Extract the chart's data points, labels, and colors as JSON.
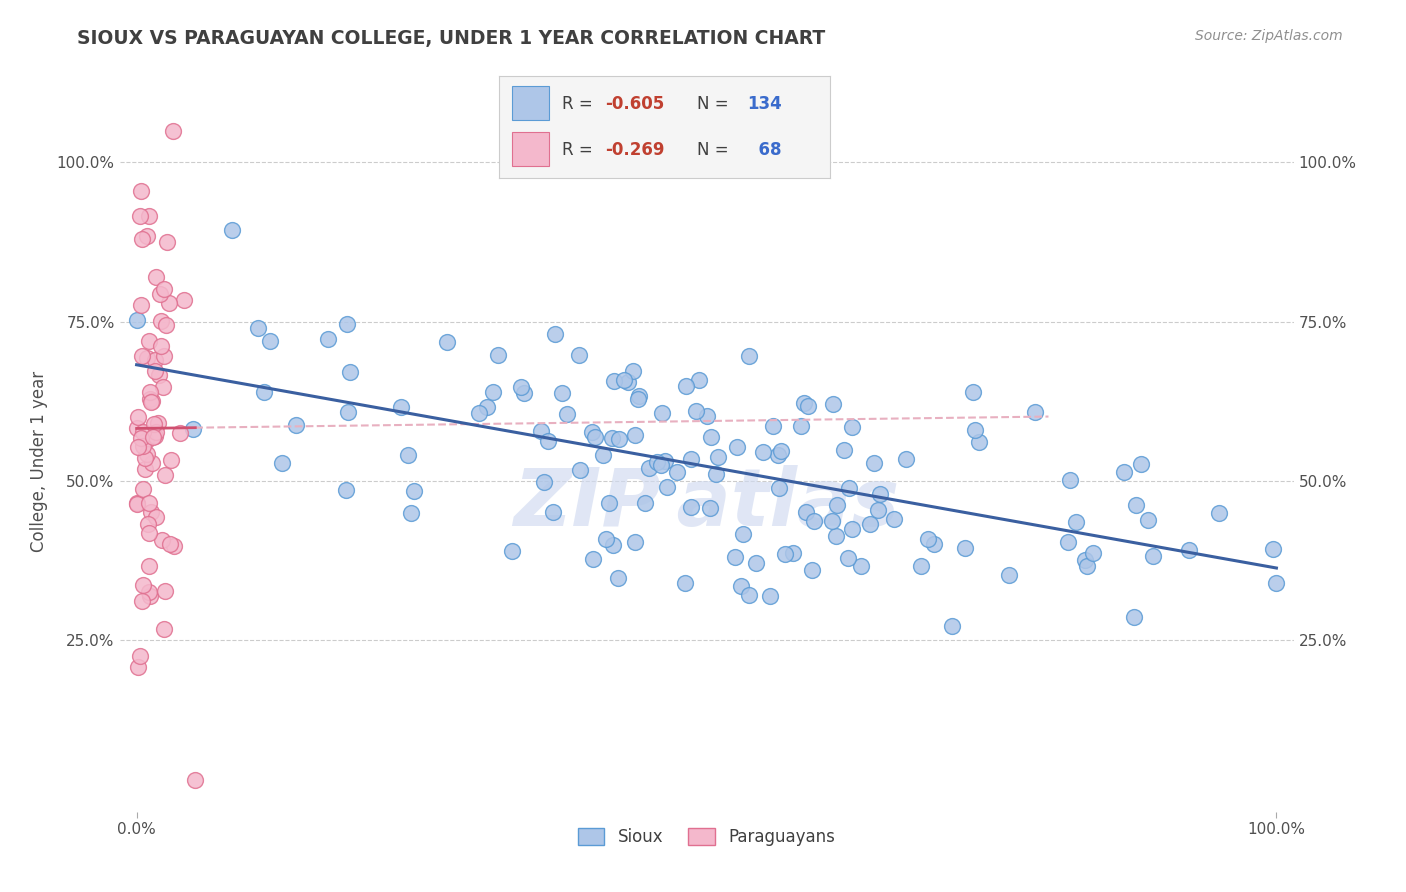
{
  "title": "SIOUX VS PARAGUAYAN COLLEGE, UNDER 1 YEAR CORRELATION CHART",
  "source": "Source: ZipAtlas.com",
  "ylabel": "College, Under 1 year",
  "sioux_R": -0.605,
  "sioux_N": 134,
  "paraguayan_R": -0.269,
  "paraguayan_N": 68,
  "sioux_color": "#aec6e8",
  "sioux_edge": "#5b9bd5",
  "paraguayan_color": "#f4b8cc",
  "paraguayan_edge": "#e07090",
  "sioux_line_color": "#3a5fa0",
  "paraguayan_line_color": "#d05070",
  "paraguayan_extline_color": "#e8b0c0",
  "title_color": "#404040",
  "source_color": "#909090",
  "watermark_color": "#d0daf0",
  "legend_fill": "#f5f5f5",
  "legend_edge": "#cccccc",
  "R_color": "#c04030",
  "N_color": "#3a6bcc",
  "grid_color": "#cccccc"
}
